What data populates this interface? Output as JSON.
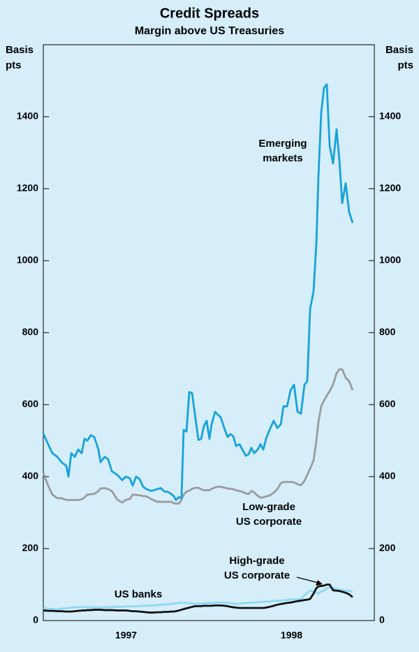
{
  "chart_data": {
    "type": "line",
    "title": "Credit Spreads",
    "subtitle": "Margin above US Treasuries",
    "y_label": "Basis pts",
    "y2_label": "Basis pts",
    "x": [
      1997.0,
      1997.034,
      1997.055,
      1997.084,
      1997.11,
      1997.139,
      1997.152,
      1997.169,
      1997.19,
      1997.211,
      1997.232,
      1997.249,
      1997.266,
      1997.287,
      1997.308,
      1997.333,
      1997.346,
      1997.371,
      1997.392,
      1997.414,
      1997.447,
      1997.477,
      1997.498,
      1997.523,
      1997.54,
      1997.561,
      1997.582,
      1997.603,
      1997.624,
      1997.654,
      1997.688,
      1997.709,
      1997.734,
      1997.751,
      1997.772,
      1997.789,
      1997.802,
      1997.819,
      1997.835,
      1997.848,
      1997.865,
      1997.882,
      1997.899,
      1997.92,
      1997.937,
      1997.954,
      1997.97,
      1997.987,
      1998.004,
      1998.017,
      1998.038,
      1998.055,
      1998.072,
      1998.097,
      1998.114,
      1998.131,
      1998.148,
      1998.165,
      1998.186,
      1998.203,
      1998.224,
      1998.241,
      1998.257,
      1998.274,
      1998.295,
      1998.312,
      1998.329,
      1998.346,
      1998.367,
      1998.392,
      1998.414,
      1998.435,
      1998.451,
      1998.473,
      1998.494,
      1998.515,
      1998.536,
      1998.557,
      1998.578,
      1998.595,
      1998.612,
      1998.633,
      1998.65,
      1998.662,
      1998.679,
      1998.696,
      1998.713,
      1998.73,
      1998.751,
      1998.772,
      1998.789,
      1998.806,
      1998.827,
      1998.848,
      1998.869
    ],
    "series": [
      {
        "name": "US banks",
        "color": "#8ed8f6",
        "values": [
          35,
          33,
          32,
          31,
          33,
          34,
          35,
          36,
          37,
          37,
          37,
          37,
          37,
          37,
          37,
          37,
          37,
          37,
          37,
          38,
          38,
          38,
          39,
          39,
          39,
          40,
          40,
          41,
          41,
          42,
          43,
          44,
          45,
          45,
          46,
          47,
          48,
          49,
          50,
          49,
          49,
          48,
          47,
          46,
          47,
          47,
          48,
          48,
          49,
          49,
          49,
          50,
          50,
          50,
          49,
          48,
          47,
          46,
          47,
          48,
          49,
          49,
          50,
          50,
          51,
          52,
          52,
          53,
          53,
          54,
          55,
          55,
          56,
          57,
          58,
          58,
          59,
          60,
          70,
          77,
          84,
          80,
          77,
          75,
          80,
          84,
          89,
          92,
          90,
          88,
          86,
          85,
          83,
          82,
          80
        ]
      },
      {
        "name": "High-grade US corporate",
        "color": "#111111",
        "values": [
          28,
          27,
          27,
          26,
          26,
          25,
          25,
          25,
          26,
          27,
          28,
          28,
          29,
          29,
          30,
          30,
          30,
          29,
          29,
          29,
          28,
          28,
          28,
          27,
          26,
          26,
          25,
          24,
          23,
          22,
          23,
          23,
          24,
          24,
          25,
          25,
          26,
          28,
          30,
          32,
          34,
          36,
          38,
          40,
          40,
          40,
          41,
          41,
          41,
          41,
          42,
          42,
          42,
          41,
          40,
          38,
          37,
          36,
          35,
          35,
          35,
          35,
          35,
          35,
          35,
          35,
          35,
          36,
          38,
          41,
          44,
          46,
          47,
          49,
          50,
          52,
          54,
          55,
          57,
          58,
          60,
          75,
          90,
          95,
          96,
          97,
          100,
          100,
          84,
          83,
          82,
          80,
          77,
          73,
          65
        ]
      },
      {
        "name": "Low-grade US corporate",
        "color": "#9b9b9b",
        "values": [
          410,
          370,
          350,
          340,
          340,
          335,
          335,
          335,
          335,
          335,
          337,
          342,
          350,
          351,
          352,
          360,
          367,
          368,
          365,
          360,
          336,
          328,
          335,
          338,
          350,
          349,
          348,
          346,
          345,
          337,
          330,
          330,
          330,
          330,
          330,
          326,
          325,
          325,
          335,
          350,
          358,
          361,
          366,
          369,
          369,
          365,
          362,
          362,
          362,
          366,
          370,
          372,
          372,
          369,
          367,
          366,
          365,
          362,
          360,
          358,
          353,
          352,
          360,
          356,
          347,
          342,
          342,
          345,
          347,
          355,
          365,
          382,
          385,
          385,
          385,
          384,
          379,
          376,
          388,
          405,
          422,
          445,
          500,
          550,
          595,
          611,
          625,
          637,
          656,
          687,
          698,
          698,
          675,
          665,
          640
        ]
      },
      {
        "name": "Emerging markets",
        "color": "#17a2dc",
        "values": [
          520,
          485,
          465,
          455,
          440,
          430,
          400,
          465,
          455,
          475,
          465,
          505,
          500,
          515,
          510,
          475,
          440,
          455,
          448,
          415,
          405,
          390,
          400,
          395,
          375,
          400,
          393,
          372,
          365,
          360,
          365,
          368,
          358,
          358,
          352,
          345,
          335,
          343,
          340,
          530,
          525,
          635,
          632,
          560,
          502,
          505,
          540,
          555,
          505,
          545,
          580,
          572,
          565,
          530,
          510,
          518,
          512,
          485,
          490,
          475,
          458,
          462,
          480,
          465,
          475,
          490,
          475,
          505,
          530,
          555,
          535,
          545,
          595,
          595,
          640,
          655,
          580,
          575,
          655,
          665,
          865,
          915,
          1050,
          1230,
          1410,
          1480,
          1490,
          1320,
          1270,
          1365,
          1280,
          1160,
          1215,
          1135,
          1105
        ]
      }
    ],
    "annotations": [
      {
        "lines": [
          "Emerging",
          "markets"
        ]
      },
      {
        "lines": [
          "Low-grade",
          "US corporate"
        ]
      },
      {
        "lines": [
          "High-grade",
          "US corporate"
        ]
      },
      {
        "lines": [
          "US banks"
        ]
      }
    ],
    "xlim": [
      1997,
      1999
    ],
    "xticks": [
      {
        "value": 1997.5,
        "label": "1997"
      },
      {
        "value": 1998.5,
        "label": "1998"
      }
    ],
    "ylim": [
      0,
      1600
    ],
    "yticks": [
      0,
      200,
      400,
      600,
      800,
      1000,
      1200,
      1400
    ],
    "y2lim": [
      0,
      1600
    ],
    "y2ticks": [
      0,
      200,
      400,
      600,
      800,
      1000,
      1200,
      1400
    ],
    "grid": false
  }
}
